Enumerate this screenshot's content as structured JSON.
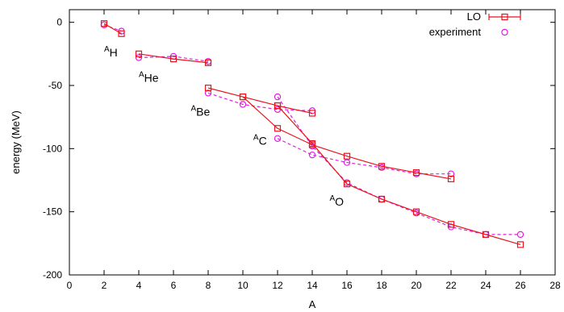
{
  "chart_data": {
    "type": "line",
    "title": "",
    "xlabel": "A",
    "ylabel": "energy (MeV)",
    "xlim": [
      0,
      28
    ],
    "ylim": [
      -200,
      10
    ],
    "xticks": [
      0,
      2,
      4,
      6,
      8,
      10,
      12,
      14,
      16,
      18,
      20,
      22,
      24,
      26,
      28
    ],
    "yticks": [
      0,
      -50,
      -100,
      -150,
      -200
    ],
    "xtick_labels": [
      "0",
      "2",
      "4",
      "6",
      "8",
      "10",
      "12",
      "14",
      "16",
      "18",
      "20",
      "22",
      "24",
      "26",
      "28"
    ],
    "ytick_labels": [
      "0",
      "-50",
      "-100",
      "-150",
      "-200"
    ],
    "grid": false,
    "legend_position": "top-right",
    "series": [
      {
        "name": "LO",
        "color": "#e8141e",
        "marker": "square",
        "line": "solid",
        "segments": [
          {
            "x": [
              2,
              3
            ],
            "y": [
              -1,
              -9
            ]
          },
          {
            "x": [
              4,
              6,
              8
            ],
            "y": [
              -25,
              -29,
              -32
            ]
          },
          {
            "x": [
              8,
              10,
              12,
              14
            ],
            "y": [
              -52,
              -59,
              -66,
              -72
            ]
          },
          {
            "x": [
              10,
              12,
              14,
              16,
              18,
              20,
              22
            ],
            "y": [
              -59,
              -84,
              -97,
              -106,
              -114,
              -119,
              -124
            ]
          },
          {
            "x": [
              12,
              14,
              16,
              18,
              20,
              22,
              24,
              26
            ],
            "y": [
              -66,
              -96,
              -128,
              -140,
              -150,
              -160,
              -168,
              -176
            ]
          }
        ]
      },
      {
        "name": "experiment",
        "color": "#dd22dd",
        "marker": "circle",
        "line": "dashed",
        "segments": [
          {
            "x": [
              2,
              3
            ],
            "y": [
              -2,
              -7
            ]
          },
          {
            "x": [
              4,
              6,
              8
            ],
            "y": [
              -28,
              -27,
              -31
            ]
          },
          {
            "x": [
              8,
              10,
              12,
              14
            ],
            "y": [
              -56,
              -65,
              -69,
              -70
            ]
          },
          {
            "x": [
              12,
              14,
              16,
              18,
              20,
              22
            ],
            "y": [
              -92,
              -105,
              -111,
              -115,
              -120,
              -120
            ]
          },
          {
            "x": [
              12,
              14,
              16,
              18,
              20,
              22,
              24,
              26
            ],
            "y": [
              -59,
              -98,
              -127,
              -140,
              -151,
              -162,
              -168,
              -168
            ]
          }
        ]
      }
    ],
    "annotations": [
      {
        "base": "H",
        "sup": "A",
        "x": 2.0,
        "y": -27
      },
      {
        "base": "He",
        "sup": "A",
        "x": 4.0,
        "y": -47
      },
      {
        "base": "Be",
        "sup": "A",
        "x": 7.0,
        "y": -74
      },
      {
        "base": "C",
        "sup": "A",
        "x": 10.6,
        "y": -97
      },
      {
        "base": "O",
        "sup": "A",
        "x": 15.0,
        "y": -145
      }
    ]
  }
}
